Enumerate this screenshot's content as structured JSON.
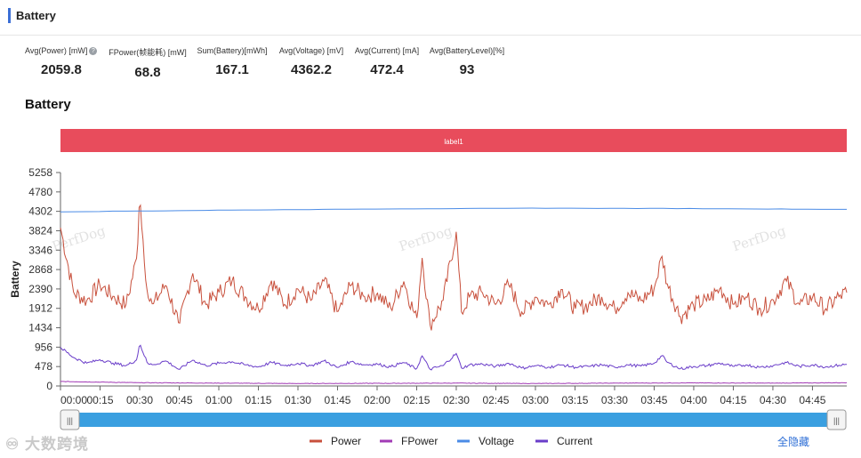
{
  "panel": {
    "title": "Battery"
  },
  "stats": [
    {
      "label": "Avg(Power) [mW]",
      "value": "2059.8",
      "help": true
    },
    {
      "label": "FPower(帧能耗) [mW]",
      "value": "68.8"
    },
    {
      "label": "Sum(Battery)[mWh]",
      "value": "167.1"
    },
    {
      "label": "Avg(Voltage) [mV]",
      "value": "4362.2"
    },
    {
      "label": "Avg(Current) [mA]",
      "value": "472.4"
    },
    {
      "label": "Avg(BatteryLevel)[%]",
      "value": "93"
    }
  ],
  "chart_title": "Battery",
  "label_band": {
    "text": "label1",
    "color": "#e84c5c"
  },
  "watermark": "PerfDog",
  "logo_text": "大数跨境",
  "hide_all_label": "全隐藏",
  "colors": {
    "power": "#c8503c",
    "fpower": "#a23bb5",
    "voltage": "#4a8be6",
    "current": "#6a3dc9",
    "slider": "#3a9fe0"
  },
  "chart_data": {
    "type": "line",
    "ylabel": "Battery",
    "xlabel": "",
    "ylim": [
      0,
      5258
    ],
    "yticks": [
      0,
      478,
      956,
      1434,
      1912,
      2390,
      2868,
      3346,
      3824,
      4302,
      4780,
      5258
    ],
    "xlim_seconds": [
      0,
      298
    ],
    "xticks": [
      {
        "label": "00:00",
        "t": 0
      },
      {
        "label": "00:15",
        "t": 15
      },
      {
        "label": "00:30",
        "t": 30
      },
      {
        "label": "00:45",
        "t": 45
      },
      {
        "label": "01:00",
        "t": 60
      },
      {
        "label": "01:15",
        "t": 75
      },
      {
        "label": "01:30",
        "t": 90
      },
      {
        "label": "01:45",
        "t": 105
      },
      {
        "label": "02:00",
        "t": 120
      },
      {
        "label": "02:15",
        "t": 135
      },
      {
        "label": "02:30",
        "t": 150
      },
      {
        "label": "02:45",
        "t": 165
      },
      {
        "label": "03:00",
        "t": 180
      },
      {
        "label": "03:15",
        "t": 195
      },
      {
        "label": "03:30",
        "t": 210
      },
      {
        "label": "03:45",
        "t": 225
      },
      {
        "label": "04:00",
        "t": 240
      },
      {
        "label": "04:15",
        "t": 255
      },
      {
        "label": "04:30",
        "t": 270
      },
      {
        "label": "04:45",
        "t": 285
      }
    ],
    "series": [
      {
        "name": "Power",
        "key": "power",
        "x": [
          0,
          5,
          10,
          15,
          20,
          25,
          29,
          30,
          33,
          35,
          40,
          45,
          50,
          55,
          60,
          65,
          70,
          75,
          80,
          85,
          90,
          95,
          100,
          105,
          110,
          115,
          120,
          125,
          130,
          135,
          137,
          140,
          145,
          150,
          152,
          155,
          160,
          165,
          170,
          175,
          180,
          185,
          190,
          195,
          200,
          205,
          210,
          215,
          220,
          225,
          228,
          230,
          235,
          240,
          245,
          250,
          255,
          260,
          265,
          270,
          275,
          280,
          285,
          290,
          295,
          298
        ],
        "y": [
          3900,
          2300,
          2100,
          2500,
          2200,
          2000,
          3200,
          4700,
          2200,
          2000,
          2500,
          1500,
          2800,
          2000,
          2300,
          2600,
          2200,
          1900,
          2600,
          2000,
          2400,
          2100,
          2600,
          1800,
          2500,
          2200,
          2300,
          1900,
          2600,
          1600,
          3200,
          1500,
          2100,
          3800,
          1800,
          2200,
          2300,
          2000,
          2500,
          1800,
          2200,
          2000,
          2400,
          1900,
          2000,
          2200,
          1900,
          2300,
          2100,
          2400,
          3200,
          2500,
          1700,
          2000,
          2100,
          2400,
          2000,
          2200,
          1900,
          2100,
          2600,
          2000,
          2200,
          1900,
          2200,
          2300
        ]
      },
      {
        "name": "FPower",
        "key": "fpower",
        "x": [
          0,
          30,
          60,
          90,
          120,
          150,
          180,
          210,
          240,
          270,
          298
        ],
        "y": [
          110,
          80,
          70,
          60,
          65,
          70,
          60,
          70,
          75,
          70,
          80
        ]
      },
      {
        "name": "Voltage",
        "key": "voltage",
        "x": [
          0,
          30,
          60,
          120,
          180,
          240,
          298
        ],
        "y": [
          4290,
          4310,
          4330,
          4360,
          4380,
          4370,
          4350
        ]
      },
      {
        "name": "Current",
        "key": "current",
        "x": [
          0,
          5,
          10,
          15,
          20,
          25,
          29,
          30,
          33,
          35,
          40,
          45,
          50,
          55,
          60,
          65,
          70,
          75,
          80,
          85,
          90,
          95,
          100,
          105,
          110,
          115,
          120,
          125,
          130,
          135,
          137,
          140,
          145,
          150,
          152,
          155,
          160,
          165,
          170,
          175,
          180,
          185,
          190,
          195,
          200,
          205,
          210,
          215,
          220,
          225,
          228,
          230,
          235,
          240,
          245,
          250,
          255,
          260,
          265,
          270,
          275,
          280,
          285,
          290,
          295,
          298
        ],
        "y": [
          950,
          700,
          560,
          650,
          560,
          500,
          650,
          1050,
          550,
          520,
          620,
          400,
          640,
          500,
          560,
          600,
          520,
          470,
          580,
          500,
          560,
          500,
          620,
          450,
          600,
          520,
          540,
          470,
          580,
          420,
          750,
          410,
          500,
          800,
          440,
          520,
          540,
          480,
          560,
          440,
          500,
          460,
          520,
          460,
          480,
          520,
          460,
          520,
          490,
          560,
          750,
          580,
          420,
          480,
          500,
          560,
          480,
          520,
          460,
          500,
          580,
          480,
          520,
          470,
          510,
          530
        ]
      }
    ],
    "legend": [
      "Power",
      "FPower",
      "Voltage",
      "Current"
    ],
    "legend_position": "bottom-center",
    "grid": false
  }
}
